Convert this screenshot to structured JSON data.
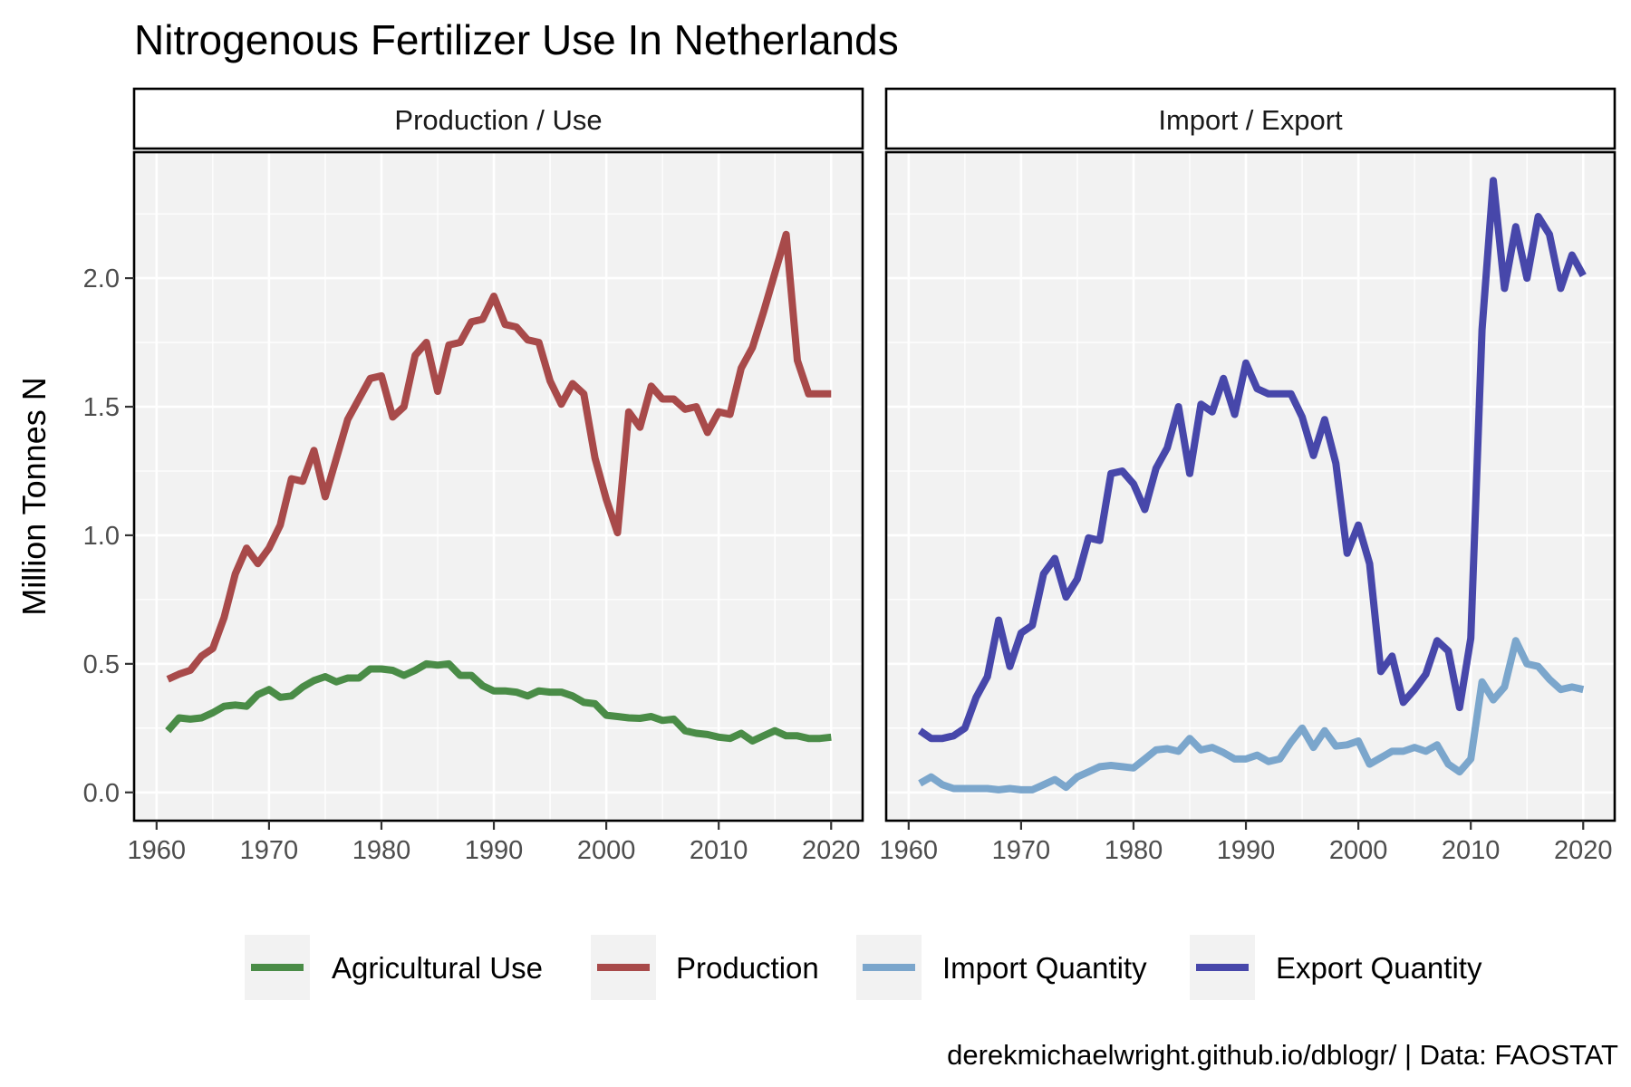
{
  "chart_data": {
    "type": "line",
    "title": "Nitrogenous Fertilizer Use In Netherlands",
    "ylabel": "Million Tonnes N",
    "caption": "derekmichaelwright.github.io/dblogr/ | Data: FAOSTAT",
    "xlim": [
      1960,
      2020
    ],
    "ylim": [
      0,
      2.4
    ],
    "x_ticks": [
      1960,
      1970,
      1980,
      1990,
      2000,
      2010,
      2020
    ],
    "y_ticks": [
      0.0,
      0.5,
      1.0,
      1.5,
      2.0
    ],
    "y_tick_labels": [
      "0.0",
      "0.5",
      "1.0",
      "1.5",
      "2.0"
    ],
    "grid": true,
    "legend_position": "bottom",
    "legend": [
      {
        "name": "Agricultural Use",
        "color": "#4a8c47"
      },
      {
        "name": "Production",
        "color": "#a84a4a"
      },
      {
        "name": "Import Quantity",
        "color": "#7ba6cc"
      },
      {
        "name": "Export Quantity",
        "color": "#4747aa"
      }
    ],
    "panels": [
      {
        "strip": "Production / Use",
        "series": [
          {
            "name": "Agricultural Use",
            "color": "#4a8c47",
            "x": [
              1961,
              1962,
              1963,
              1964,
              1965,
              1966,
              1967,
              1968,
              1969,
              1970,
              1971,
              1972,
              1973,
              1974,
              1975,
              1976,
              1977,
              1978,
              1979,
              1980,
              1981,
              1982,
              1983,
              1984,
              1985,
              1986,
              1987,
              1988,
              1989,
              1990,
              1991,
              1992,
              1993,
              1994,
              1995,
              1996,
              1997,
              1998,
              1999,
              2000,
              2001,
              2002,
              2003,
              2004,
              2005,
              2006,
              2007,
              2008,
              2009,
              2010,
              2011,
              2012,
              2013,
              2014,
              2015,
              2016,
              2017,
              2018,
              2019,
              2020
            ],
            "values": [
              0.24,
              0.29,
              0.285,
              0.29,
              0.31,
              0.335,
              0.34,
              0.335,
              0.38,
              0.4,
              0.37,
              0.375,
              0.41,
              0.435,
              0.45,
              0.43,
              0.445,
              0.445,
              0.48,
              0.48,
              0.475,
              0.455,
              0.475,
              0.5,
              0.495,
              0.5,
              0.455,
              0.455,
              0.415,
              0.395,
              0.395,
              0.39,
              0.375,
              0.395,
              0.39,
              0.39,
              0.375,
              0.35,
              0.345,
              0.3,
              0.295,
              0.29,
              0.288,
              0.295,
              0.28,
              0.285,
              0.24,
              0.23,
              0.225,
              0.215,
              0.21,
              0.23,
              0.2,
              0.22,
              0.24,
              0.22,
              0.22,
              0.21,
              0.21,
              0.215
            ]
          },
          {
            "name": "Production",
            "color": "#a84a4a",
            "x": [
              1961,
              1962,
              1963,
              1964,
              1965,
              1966,
              1967,
              1968,
              1969,
              1970,
              1971,
              1972,
              1973,
              1974,
              1975,
              1976,
              1977,
              1978,
              1979,
              1980,
              1981,
              1982,
              1983,
              1984,
              1985,
              1986,
              1987,
              1988,
              1989,
              1990,
              1991,
              1992,
              1993,
              1994,
              1995,
              1996,
              1997,
              1998,
              1999,
              2000,
              2001,
              2002,
              2003,
              2004,
              2005,
              2006,
              2007,
              2008,
              2009,
              2010,
              2011,
              2012,
              2013,
              2014,
              2015,
              2016,
              2017,
              2018,
              2019,
              2020
            ],
            "values": [
              0.44,
              0.46,
              0.475,
              0.53,
              0.56,
              0.68,
              0.85,
              0.95,
              0.89,
              0.95,
              1.04,
              1.22,
              1.21,
              1.33,
              1.15,
              1.3,
              1.45,
              1.53,
              1.61,
              1.62,
              1.46,
              1.5,
              1.7,
              1.75,
              1.56,
              1.74,
              1.75,
              1.83,
              1.84,
              1.93,
              1.82,
              1.81,
              1.76,
              1.75,
              1.6,
              1.51,
              1.59,
              1.55,
              1.3,
              1.14,
              1.01,
              1.48,
              1.42,
              1.58,
              1.53,
              1.53,
              1.49,
              1.5,
              1.4,
              1.48,
              1.47,
              1.65,
              1.73,
              1.87,
              2.02,
              2.17,
              1.68,
              1.55,
              1.55,
              1.55
            ]
          }
        ]
      },
      {
        "strip": "Import / Export",
        "series": [
          {
            "name": "Import Quantity",
            "color": "#7ba6cc",
            "x": [
              1961,
              1962,
              1963,
              1964,
              1965,
              1966,
              1967,
              1968,
              1969,
              1970,
              1971,
              1972,
              1973,
              1974,
              1975,
              1976,
              1977,
              1978,
              1979,
              1980,
              1981,
              1982,
              1983,
              1984,
              1985,
              1986,
              1987,
              1988,
              1989,
              1990,
              1991,
              1992,
              1993,
              1994,
              1995,
              1996,
              1997,
              1998,
              1999,
              2000,
              2001,
              2002,
              2003,
              2004,
              2005,
              2006,
              2007,
              2008,
              2009,
              2010,
              2011,
              2012,
              2013,
              2014,
              2015,
              2016,
              2017,
              2018,
              2019,
              2020
            ],
            "values": [
              0.035,
              0.06,
              0.03,
              0.015,
              0.015,
              0.015,
              0.015,
              0.01,
              0.015,
              0.01,
              0.01,
              0.03,
              0.05,
              0.02,
              0.06,
              0.08,
              0.1,
              0.105,
              0.1,
              0.095,
              0.13,
              0.165,
              0.17,
              0.16,
              0.21,
              0.165,
              0.175,
              0.155,
              0.13,
              0.13,
              0.145,
              0.12,
              0.13,
              0.195,
              0.25,
              0.175,
              0.24,
              0.18,
              0.185,
              0.2,
              0.11,
              0.135,
              0.16,
              0.16,
              0.175,
              0.16,
              0.185,
              0.11,
              0.08,
              0.13,
              0.43,
              0.36,
              0.41,
              0.59,
              0.5,
              0.49,
              0.44,
              0.4,
              0.41,
              0.4
            ]
          },
          {
            "name": "Export Quantity",
            "color": "#4747aa",
            "x": [
              1961,
              1962,
              1963,
              1964,
              1965,
              1966,
              1967,
              1968,
              1969,
              1970,
              1971,
              1972,
              1973,
              1974,
              1975,
              1976,
              1977,
              1978,
              1979,
              1980,
              1981,
              1982,
              1983,
              1984,
              1985,
              1986,
              1987,
              1988,
              1989,
              1990,
              1991,
              1992,
              1993,
              1994,
              1995,
              1996,
              1997,
              1998,
              1999,
              2000,
              2001,
              2002,
              2003,
              2004,
              2005,
              2006,
              2007,
              2008,
              2009,
              2010,
              2011,
              2012,
              2013,
              2014,
              2015,
              2016,
              2017,
              2018,
              2019,
              2020
            ],
            "values": [
              0.24,
              0.21,
              0.21,
              0.22,
              0.25,
              0.37,
              0.45,
              0.67,
              0.49,
              0.62,
              0.65,
              0.85,
              0.91,
              0.76,
              0.83,
              0.99,
              0.98,
              1.24,
              1.25,
              1.2,
              1.1,
              1.26,
              1.34,
              1.5,
              1.24,
              1.51,
              1.48,
              1.61,
              1.47,
              1.67,
              1.57,
              1.55,
              1.55,
              1.55,
              1.46,
              1.31,
              1.45,
              1.28,
              0.93,
              1.04,
              0.89,
              0.47,
              0.53,
              0.35,
              0.4,
              0.46,
              0.59,
              0.55,
              0.33,
              0.6,
              1.8,
              2.38,
              1.96,
              2.2,
              2.0,
              2.24,
              2.17,
              1.96,
              2.09,
              2.01
            ]
          }
        ]
      }
    ]
  }
}
